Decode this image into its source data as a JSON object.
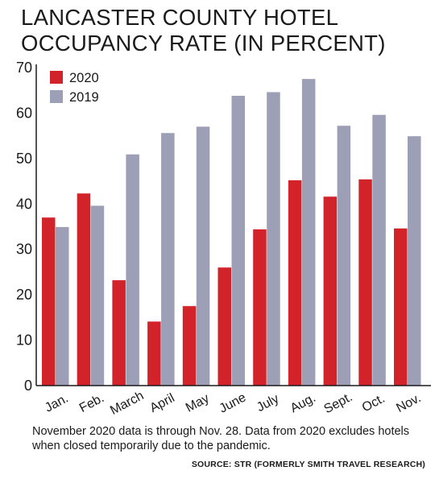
{
  "title_line1": "LANCASTER COUNTY HOTEL",
  "title_line2": "OCCUPANCY RATE (IN PERCENT)",
  "note": "November 2020 data is through Nov. 28. Data from 2020 excludes hotels when closed temporarily due to the pandemic.",
  "source": "SOURCE: STR (FORMERLY SMITH TRAVEL RESEARCH)",
  "colors": {
    "s2020": "#d2232a",
    "s2019": "#9d9fb6",
    "axis": "#1a1a1a"
  },
  "chart_data": {
    "type": "bar",
    "title": "LANCASTER COUNTY HOTEL OCCUPANCY RATE (IN PERCENT)",
    "xlabel": "",
    "ylabel": "",
    "ylim": [
      0,
      70
    ],
    "yticks": [
      0,
      10,
      20,
      30,
      40,
      50,
      60,
      70
    ],
    "grid": false,
    "legend_position": "top-left",
    "categories": [
      "Jan.",
      "Feb.",
      "March",
      "April",
      "May",
      "June",
      "July",
      "Aug.",
      "Sept.",
      "Oct.",
      "Nov."
    ],
    "series": [
      {
        "name": "2020",
        "values": [
          37.0,
          42.3,
          23.2,
          14.1,
          17.5,
          26.0,
          34.4,
          45.2,
          41.6,
          45.4,
          34.6
        ]
      },
      {
        "name": "2019",
        "values": [
          34.9,
          39.6,
          50.9,
          55.6,
          57.0,
          63.8,
          64.6,
          67.5,
          57.2,
          59.6,
          54.9
        ]
      }
    ]
  }
}
